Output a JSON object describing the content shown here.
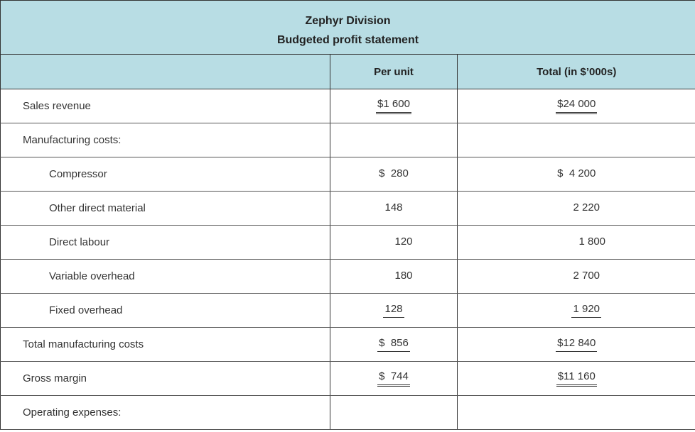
{
  "title": {
    "line1": "Zephyr Division",
    "line2": "Budgeted profit statement"
  },
  "columns": {
    "label": "",
    "per_unit": "Per unit",
    "total": "Total (in $’000s)"
  },
  "rows": [
    {
      "label": "Sales revenue",
      "per_unit": "$1 600",
      "total": "$24 000"
    },
    {
      "label": "Manufacturing costs:",
      "per_unit": "",
      "total": ""
    },
    {
      "label": "Compressor",
      "per_unit": "$  280",
      "total": "$  4 200"
    },
    {
      "label": "Other direct material",
      "per_unit": "148",
      "total": "2 220"
    },
    {
      "label": "Direct labour",
      "per_unit": "120",
      "total": "1 800"
    },
    {
      "label": "Variable overhead",
      "per_unit": "180",
      "total": "2 700"
    },
    {
      "label": "Fixed overhead",
      "per_unit": "128",
      "total": "1 920"
    },
    {
      "label": "Total manufacturing costs",
      "per_unit": "$  856",
      "total": "$12 840"
    },
    {
      "label": "Gross margin",
      "per_unit": "$  744",
      "total": "$11 160"
    },
    {
      "label": "Operating expenses:",
      "per_unit": "",
      "total": ""
    }
  ],
  "colors": {
    "header_bg": "#b8dde4",
    "border": "#333333"
  }
}
